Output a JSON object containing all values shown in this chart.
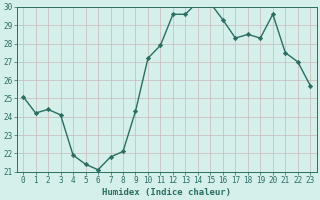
{
  "x": [
    0,
    1,
    2,
    3,
    4,
    5,
    6,
    7,
    8,
    9,
    10,
    11,
    12,
    13,
    14,
    15,
    16,
    17,
    18,
    19,
    20,
    21,
    22,
    23
  ],
  "y": [
    25.1,
    24.2,
    24.4,
    24.1,
    21.9,
    21.4,
    21.1,
    21.8,
    22.1,
    24.3,
    27.2,
    27.9,
    29.6,
    29.6,
    30.3,
    30.2,
    29.3,
    28.3,
    28.5,
    28.3,
    29.6,
    27.5,
    27.0,
    25.7
  ],
  "xlabel": "Humidex (Indice chaleur)",
  "ylim": [
    21,
    30
  ],
  "xlim": [
    -0.5,
    23.5
  ],
  "bg_color": "#d5efeb",
  "grid_color": "#c8b8b8",
  "line_color": "#2a6e62",
  "marker": "D",
  "marker_size": 2.2,
  "line_width": 1.0,
  "yticks": [
    21,
    22,
    23,
    24,
    25,
    26,
    27,
    28,
    29,
    30
  ],
  "xticks": [
    0,
    1,
    2,
    3,
    4,
    5,
    6,
    7,
    8,
    9,
    10,
    11,
    12,
    13,
    14,
    15,
    16,
    17,
    18,
    19,
    20,
    21,
    22,
    23
  ],
  "xlabel_fontsize": 6.5,
  "tick_fontsize": 5.5
}
